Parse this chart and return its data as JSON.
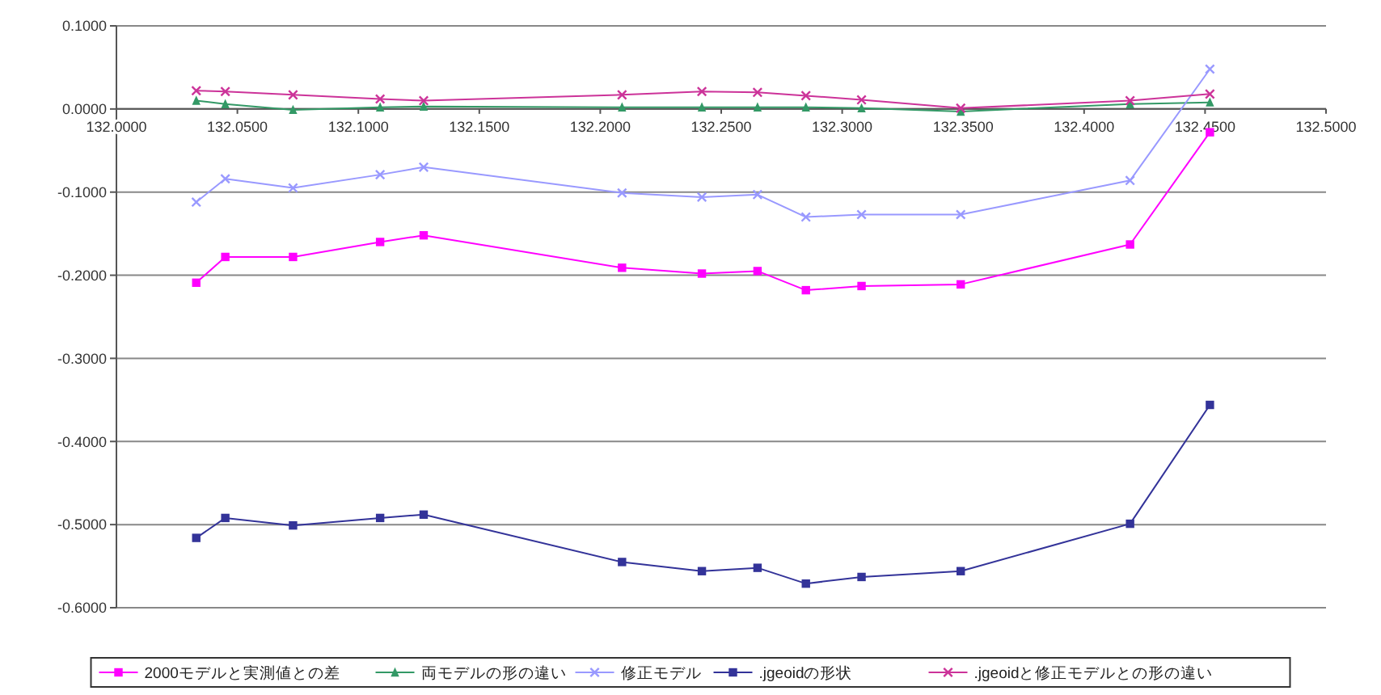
{
  "chart_data": {
    "type": "line",
    "x": [
      132.033,
      132.045,
      132.073,
      132.109,
      132.127,
      132.209,
      132.242,
      132.265,
      132.285,
      132.308,
      132.349,
      132.419,
      132.452
    ],
    "series": [
      {
        "name": "2000モデルと実測値との差",
        "color": "#ff00ff",
        "marker": "square",
        "values": [
          -0.209,
          -0.178,
          -0.178,
          -0.16,
          -0.152,
          -0.191,
          -0.198,
          -0.195,
          -0.218,
          -0.213,
          -0.211,
          -0.163,
          -0.028
        ]
      },
      {
        "name": "両モデルの形の違い",
        "color": "#339966",
        "marker": "triangle",
        "values": [
          0.01,
          0.006,
          -0.001,
          0.002,
          0.003,
          0.002,
          0.002,
          0.002,
          0.002,
          0.001,
          -0.003,
          0.006,
          0.008
        ]
      },
      {
        "name": "修正モデル",
        "color": "#9999ff",
        "marker": "cross",
        "values": [
          -0.112,
          -0.084,
          -0.095,
          -0.079,
          -0.07,
          -0.101,
          -0.106,
          -0.103,
          -0.13,
          -0.127,
          -0.127,
          -0.086,
          0.048
        ]
      },
      {
        "name": ".jgeoidの形状",
        "color": "#333399",
        "marker": "square",
        "values": [
          -0.516,
          -0.492,
          -0.501,
          -0.492,
          -0.488,
          -0.545,
          -0.556,
          -0.552,
          -0.571,
          -0.563,
          -0.556,
          -0.499,
          -0.356
        ]
      },
      {
        "name": ".jgeoidと修正モデルとの形の違い",
        "color": "#cc3399",
        "marker": "cross",
        "values": [
          0.022,
          0.021,
          0.017,
          0.012,
          0.01,
          0.017,
          0.021,
          0.02,
          0.016,
          0.011,
          0.001,
          0.01,
          0.018
        ]
      }
    ],
    "xlim": [
      132.0,
      132.5
    ],
    "xticks": [
      {
        "value": 132.0,
        "label": "132.0000"
      },
      {
        "value": 132.05,
        "label": "132.0500"
      },
      {
        "value": 132.1,
        "label": "132.1000"
      },
      {
        "value": 132.15,
        "label": "132.1500"
      },
      {
        "value": 132.2,
        "label": "132.2000"
      },
      {
        "value": 132.25,
        "label": "132.2500"
      },
      {
        "value": 132.3,
        "label": "132.3000"
      },
      {
        "value": 132.35,
        "label": "132.3500"
      },
      {
        "value": 132.4,
        "label": "132.4000"
      },
      {
        "value": 132.45,
        "label": "132.4500"
      },
      {
        "value": 132.5,
        "label": "132.5000"
      }
    ],
    "ylim": [
      -0.6,
      0.1
    ],
    "yticks": [
      {
        "value": 0.1,
        "label": "0.1000"
      },
      {
        "value": 0,
        "label": "0.0000"
      },
      {
        "value": -0.1,
        "label": "-0.1000"
      },
      {
        "value": -0.2,
        "label": "-0.2000"
      },
      {
        "value": -0.3,
        "label": "-0.3000"
      },
      {
        "value": -0.4,
        "label": "-0.4000"
      },
      {
        "value": -0.5,
        "label": "-0.5000"
      },
      {
        "value": -0.6,
        "label": "-0.6000"
      }
    ],
    "grid": "y",
    "legend": "bottom"
  }
}
